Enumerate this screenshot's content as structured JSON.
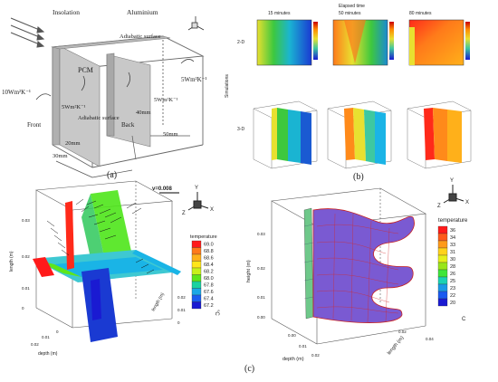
{
  "panel_a": {
    "caption": "(a)",
    "labels": {
      "insolation": "Insolation",
      "aluminium": "Aluminium",
      "adiabatic_top": "Adiabatic surface",
      "pcm": "PCM",
      "h_left": "10Wm²K⁻¹",
      "h_top_right": "5Wm²K⁻¹",
      "h_inner_left": "5Wm²K⁻¹",
      "h_inner_right": "5Wm²K⁻¹",
      "front": "Front",
      "adiabatic_bottom": "Adiabatic surface",
      "back": "Back",
      "dim_40": "40mm",
      "dim_50": "50mm",
      "dim_20": "20mm",
      "dim_30": "30mm"
    }
  },
  "panel_b": {
    "caption": "(b)",
    "elapsed_label": "Elapsed time",
    "times": [
      "15 minutes",
      "50 minutes",
      "80 minutes"
    ],
    "row_labels": [
      "2-D",
      "3-D"
    ],
    "side_label": "Simulations"
  },
  "panel_c": {
    "caption": "(c)",
    "left_plot": {
      "vector_label": "v=0.008",
      "legend_title": "temperature",
      "legend_unit": "°C",
      "legend_values": [
        "69.0",
        "68.8",
        "68.6",
        "68.4",
        "68.2",
        "68.0",
        "67.8",
        "67.6",
        "67.4",
        "67.2"
      ],
      "legend_colors": [
        "#ff1a1a",
        "#ff7a1a",
        "#ffb01a",
        "#ffe61a",
        "#c8f01a",
        "#5ee61a",
        "#1ad2a0",
        "#1aa8e6",
        "#1a5ef0",
        "#1a1ad2"
      ],
      "ylabel": "length (m)",
      "xlabel": "depth (m)",
      "zlabel": "length (m)",
      "yticks": [
        "0.03",
        "0.02",
        "0.01",
        "0"
      ],
      "xticks": [
        "0",
        "0.01",
        "0.02",
        "0.03"
      ],
      "zticks": [
        "0.02",
        "0.01",
        "0"
      ],
      "axes": {
        "x": "X",
        "y": "Y",
        "z": "Z"
      }
    },
    "right_plot": {
      "legend_title": "temperature",
      "legend_unit": "C",
      "legend_values": [
        "36",
        "34",
        "33",
        "31",
        "30",
        "28",
        "26",
        "25",
        "23",
        "22",
        "20"
      ],
      "legend_colors": [
        "#ff1a1a",
        "#ff5a1a",
        "#ff9a1a",
        "#ffd21a",
        "#e6f01a",
        "#9ae61a",
        "#3ee63a",
        "#1ad2b4",
        "#1a9ae6",
        "#1a5af0",
        "#1a1ad2"
      ],
      "ylabel": "height (m)",
      "xlabel": "depth (m)",
      "zlabel": "length (m)",
      "yticks": [
        "0.03",
        "0.02",
        "0.01",
        "0.00"
      ],
      "xticks": [
        "0.00",
        "0.01",
        "0.02"
      ],
      "zticks": [
        "0.02",
        "0.04"
      ],
      "axes": {
        "x": "X",
        "y": "Y",
        "z": "Z"
      }
    }
  }
}
